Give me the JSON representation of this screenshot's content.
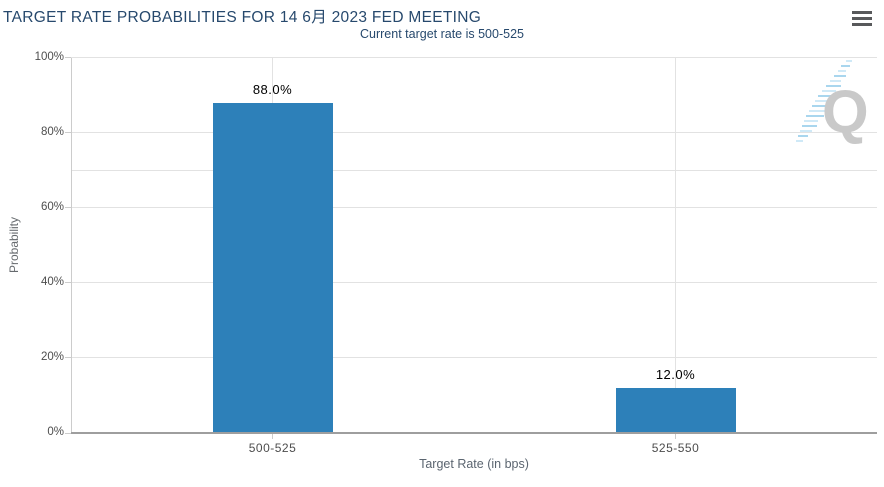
{
  "chart_data": {
    "type": "bar",
    "title": "TARGET RATE PROBABILITIES FOR 14 6月 2023 FED MEETING",
    "subtitle": "Current target rate is 500-525",
    "categories": [
      "500-525",
      "525-550"
    ],
    "values": [
      88.0,
      12.0
    ],
    "data_labels": [
      "88.0%",
      "12.0%"
    ],
    "xlabel": "Target Rate (in bps)",
    "ylabel": "Probability",
    "ylim": [
      0,
      100
    ],
    "yticks": [
      0,
      20,
      40,
      60,
      80,
      100
    ],
    "ytick_labels": [
      "0%",
      "20%",
      "40%",
      "60%",
      "80%",
      "100%"
    ],
    "extra_gridline": 70,
    "grid": true,
    "legend": "none",
    "bar_color": "#2d80b9"
  },
  "watermark": {
    "letter": "Q"
  },
  "colors": {
    "title_text": "#27496d",
    "bar": "#2d80b9",
    "gridline": "#e2e2e2",
    "y_axis_line": "#cccccc",
    "x_axis_line": "#9e9e9e",
    "tick_label": "#4d4d4d",
    "axis_title": "#5b6570",
    "data_label": "#000000",
    "menu_icon": "#58595b",
    "watermark_q": "#c9c9c9",
    "watermark_dash": "#a9d6ee"
  }
}
